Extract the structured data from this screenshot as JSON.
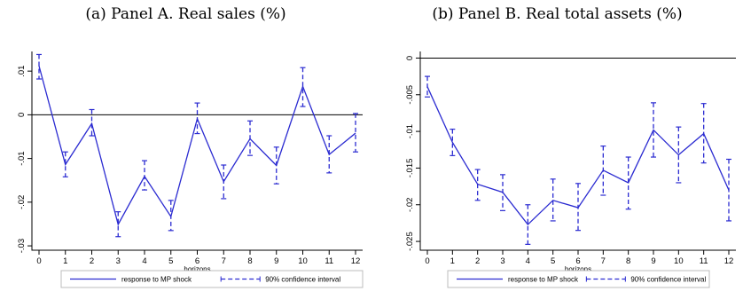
{
  "chart_data": [
    {
      "type": "line",
      "title": "(a) Panel A. Real sales (%)",
      "xlabel": "horizons",
      "ylabel": "",
      "x": [
        0,
        1,
        2,
        3,
        4,
        5,
        6,
        7,
        8,
        9,
        10,
        11,
        12
      ],
      "x_ticks": [
        "0",
        "1",
        "2",
        "3",
        "4",
        "5",
        "6",
        "7",
        "8",
        "9",
        "10",
        "11",
        "12"
      ],
      "y_ticks": [
        {
          "value": 0.01,
          "label": ".01"
        },
        {
          "value": 0,
          "label": "0"
        },
        {
          "value": -0.01,
          "label": "-.01"
        },
        {
          "value": -0.02,
          "label": "-.02"
        },
        {
          "value": -0.03,
          "label": "-.03"
        }
      ],
      "ylim": [
        -0.031,
        0.0145
      ],
      "zero_line": 0,
      "grid": false,
      "series": [
        {
          "name": "response to MP shock",
          "style": "line",
          "values": [
            0.0112,
            -0.0114,
            -0.002,
            -0.0251,
            -0.0141,
            -0.0233,
            -0.0009,
            -0.0153,
            -0.0055,
            -0.0116,
            0.0065,
            -0.0091,
            -0.0042
          ]
        },
        {
          "name": "90% confidence interval",
          "style": "capped-range",
          "lower": [
            0.0082,
            -0.0142,
            -0.0048,
            -0.0279,
            -0.0172,
            -0.0265,
            -0.0043,
            -0.0192,
            -0.0093,
            -0.0158,
            0.0019,
            -0.0133,
            -0.0085
          ],
          "upper": [
            0.0138,
            -0.0085,
            0.0012,
            -0.0222,
            -0.0105,
            -0.0196,
            0.0027,
            -0.0115,
            -0.0014,
            -0.0074,
            0.0108,
            -0.0048,
            0.0003
          ]
        }
      ],
      "legend": {
        "position": "bottom",
        "items": [
          "response to MP shock",
          "90% confidence interval"
        ]
      }
    },
    {
      "type": "line",
      "title": "(b) Panel B. Real total assets (%)",
      "xlabel": "horizons",
      "ylabel": "",
      "x": [
        0,
        1,
        2,
        3,
        4,
        5,
        6,
        7,
        8,
        9,
        10,
        11,
        12
      ],
      "x_ticks": [
        "0",
        "1",
        "2",
        "3",
        "4",
        "5",
        "6",
        "7",
        "8",
        "9",
        "10",
        "11",
        "12"
      ],
      "y_ticks": [
        {
          "value": 0,
          "label": "0"
        },
        {
          "value": -0.005,
          "label": "-.005"
        },
        {
          "value": -0.01,
          "label": "-.01"
        },
        {
          "value": -0.015,
          "label": "-.015"
        },
        {
          "value": -0.02,
          "label": "-.02"
        },
        {
          "value": -0.025,
          "label": "-.025"
        }
      ],
      "ylim": [
        -0.0262,
        0.0009
      ],
      "zero_line": 0,
      "grid": false,
      "series": [
        {
          "name": "response to MP shock",
          "style": "line",
          "values": [
            -0.0039,
            -0.0115,
            -0.0172,
            -0.0183,
            -0.0227,
            -0.0194,
            -0.0204,
            -0.0153,
            -0.017,
            -0.0098,
            -0.0132,
            -0.0103,
            -0.018
          ]
        },
        {
          "name": "90% confidence interval",
          "style": "capped-range",
          "lower": [
            -0.0053,
            -0.0133,
            -0.0194,
            -0.0208,
            -0.0254,
            -0.0222,
            -0.0235,
            -0.0187,
            -0.0206,
            -0.0135,
            -0.017,
            -0.0143,
            -0.0222
          ],
          "upper": [
            -0.0025,
            -0.0097,
            -0.0152,
            -0.0159,
            -0.02,
            -0.0165,
            -0.0171,
            -0.012,
            -0.0135,
            -0.0061,
            -0.0094,
            -0.0062,
            -0.0138
          ]
        }
      ],
      "legend": {
        "position": "bottom",
        "items": [
          "response to MP shock",
          "90% confidence interval"
        ]
      }
    }
  ],
  "colors": {
    "line": "#2b2bd1",
    "axis": "#000000",
    "zero_line": "#000000",
    "legend_border": "#bcbcbc"
  }
}
